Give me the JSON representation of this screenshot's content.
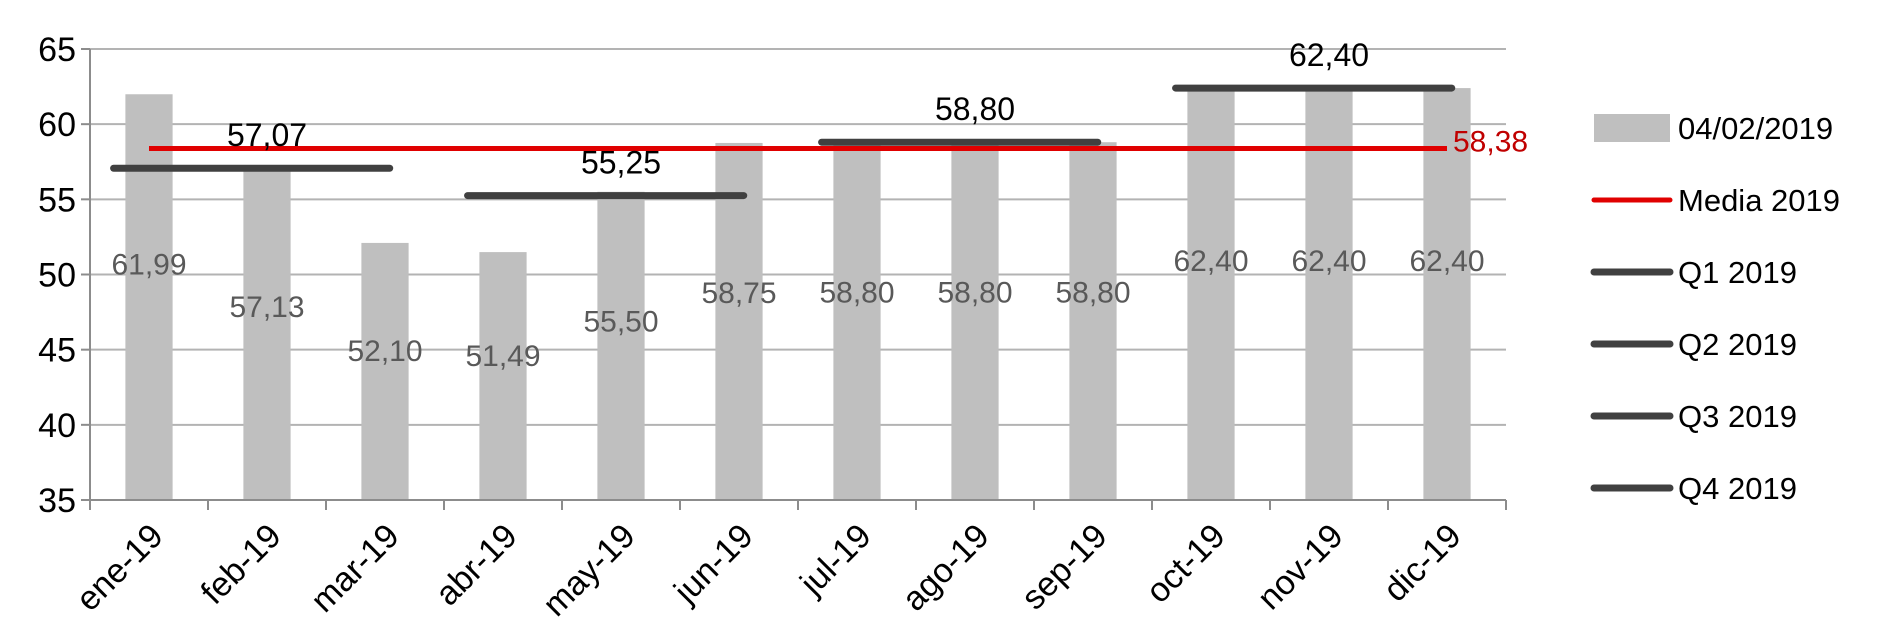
{
  "chart_data": {
    "type": "bar",
    "categories": [
      "ene-19",
      "feb-19",
      "mar-19",
      "abr-19",
      "may-19",
      "jun-19",
      "jul-19",
      "ago-19",
      "sep-19",
      "oct-19",
      "nov-19",
      "dic-19"
    ],
    "ylim": [
      35,
      65
    ],
    "yticks": [
      35,
      40,
      45,
      50,
      55,
      60,
      65
    ],
    "grid": true,
    "legend_position": "right",
    "series": [
      {
        "name": "04/02/2019",
        "kind": "bar",
        "color": "#bfbfbf",
        "values": [
          61.99,
          57.13,
          52.1,
          51.49,
          55.5,
          58.75,
          58.8,
          58.8,
          58.8,
          62.4,
          62.4,
          62.4
        ],
        "labels": [
          "61,99",
          "57,13",
          "52,10",
          "51,49",
          "55,50",
          "58,75",
          "58,80",
          "58,80",
          "58,80",
          "62,40",
          "62,40",
          "62,40"
        ]
      },
      {
        "name": "Media 2019",
        "kind": "line",
        "color": "#e00000",
        "value": 58.38,
        "label": "58,38",
        "range": [
          0,
          11
        ]
      },
      {
        "name": "Q1 2019",
        "kind": "segment",
        "color": "#404040",
        "value": 57.07,
        "label": "57,07",
        "range": [
          0,
          2
        ]
      },
      {
        "name": "Q2 2019",
        "kind": "segment",
        "color": "#404040",
        "value": 55.25,
        "label": "55,25",
        "range": [
          3,
          5
        ]
      },
      {
        "name": "Q3 2019",
        "kind": "segment",
        "color": "#404040",
        "value": 58.8,
        "label": "58,80",
        "range": [
          6,
          8
        ]
      },
      {
        "name": "Q4 2019",
        "kind": "segment",
        "color": "#404040",
        "value": 62.4,
        "label": "62,40",
        "range": [
          9,
          11
        ]
      }
    ]
  }
}
